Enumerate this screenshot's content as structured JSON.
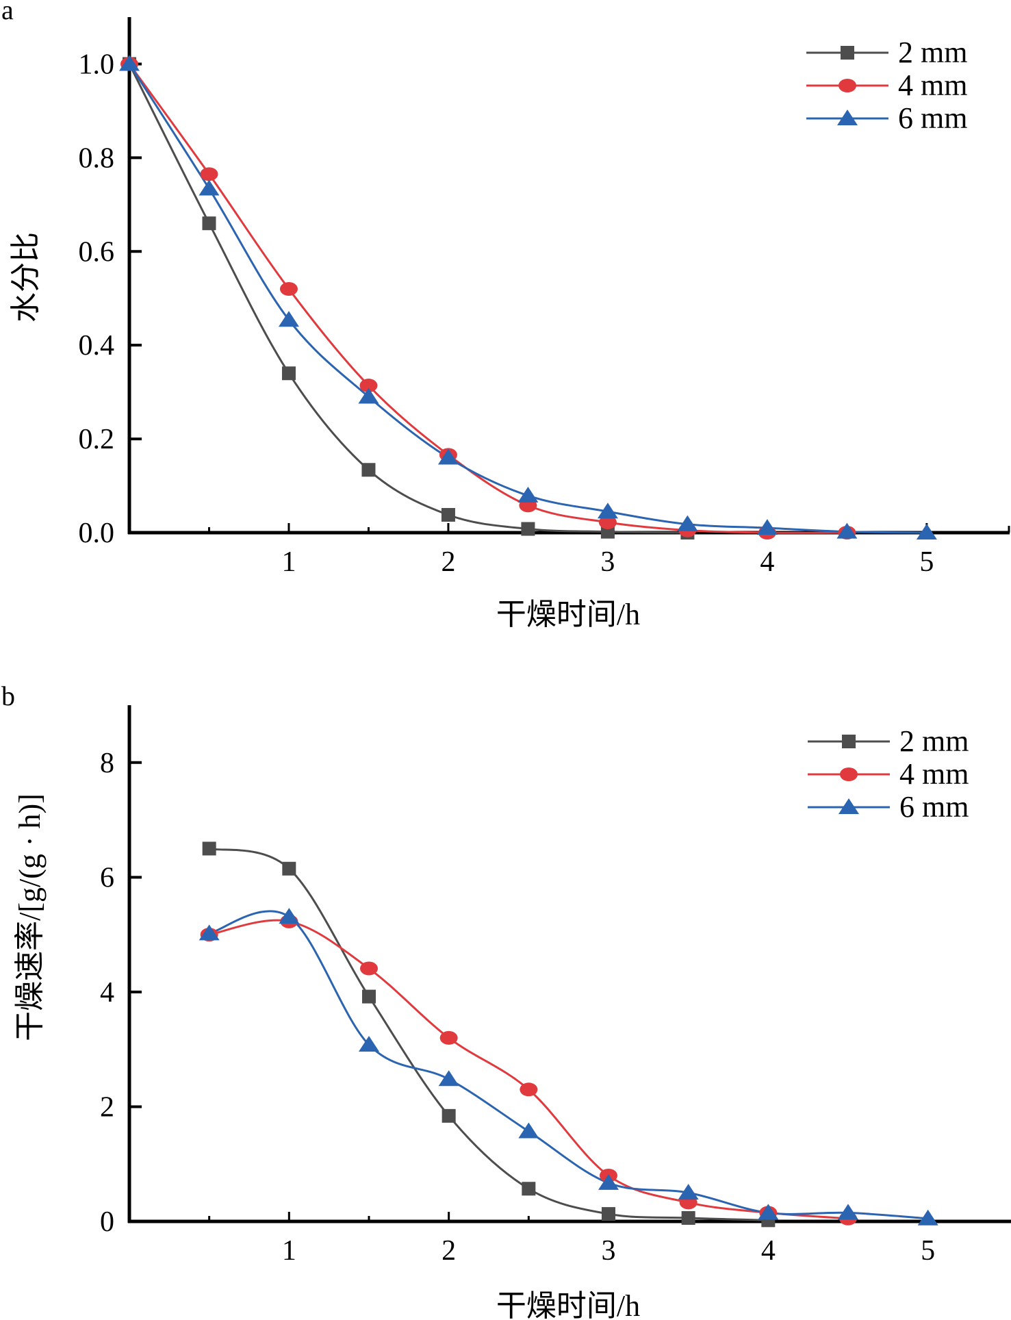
{
  "chart_data": [
    {
      "panel_label": "a",
      "type": "line",
      "title": "",
      "xlabel": "干燥时间/h",
      "ylabel": "水分比",
      "xlim": [
        0,
        5.52
      ],
      "ylim": [
        0,
        1.1
      ],
      "xticks": [
        1,
        2,
        3,
        4,
        5
      ],
      "xtick_labels": [
        "1",
        "2",
        "3",
        "4",
        "5"
      ],
      "xminor": [
        0.5,
        1.5,
        2.5,
        3.5,
        4.5
      ],
      "yticks": [
        0,
        0.2,
        0.4,
        0.6,
        0.8,
        1.0
      ],
      "ytick_labels": [
        "0.0",
        "0.2",
        "0.4",
        "0.6",
        "0.8",
        "1.0"
      ],
      "grid": false,
      "legend_position": "top-right",
      "x": [
        0,
        0.5,
        1,
        1.5,
        2,
        2.5,
        3,
        3.5,
        4,
        4.5,
        5
      ],
      "series": [
        {
          "name": "2 mm",
          "color": "#4d4d4d",
          "marker": "square",
          "x": [
            0,
            0.5,
            1,
            1.5,
            2,
            2.5,
            3,
            3.5
          ],
          "values": [
            1.0,
            0.66,
            0.34,
            0.134,
            0.038,
            0.008,
            0.002,
            0.0
          ]
        },
        {
          "name": "4 mm",
          "color": "#e03a3e",
          "marker": "circle",
          "x": [
            0,
            0.5,
            1,
            1.5,
            2,
            2.5,
            3,
            3.5,
            4,
            4.5
          ],
          "values": [
            1.0,
            0.765,
            0.52,
            0.314,
            0.166,
            0.058,
            0.022,
            0.005,
            0.0,
            0.0
          ]
        },
        {
          "name": "6 mm",
          "color": "#2b64b0",
          "marker": "triangle",
          "x": [
            0,
            0.5,
            1,
            1.5,
            2,
            2.5,
            3,
            3.5,
            4,
            4.5,
            5
          ],
          "values": [
            1.0,
            0.734,
            0.454,
            0.29,
            0.16,
            0.079,
            0.045,
            0.018,
            0.01,
            0.002,
            0.0
          ]
        }
      ]
    },
    {
      "panel_label": "b",
      "type": "line",
      "title": "",
      "xlabel": "干燥时间/h",
      "ylabel": "干燥速率/[g/(g · h)]",
      "xlim": [
        0,
        5.52
      ],
      "ylim": [
        0,
        9
      ],
      "xticks": [
        1,
        2,
        3,
        4,
        5
      ],
      "xtick_labels": [
        "1",
        "2",
        "3",
        "4",
        "5"
      ],
      "xminor": [
        0.5,
        1.5,
        2.5,
        3.5,
        4.5
      ],
      "yticks": [
        0,
        2,
        4,
        6,
        8
      ],
      "ytick_labels": [
        "0",
        "2",
        "4",
        "6",
        "8"
      ],
      "grid": false,
      "legend_position": "top-right",
      "series": [
        {
          "name": "2 mm",
          "color": "#4d4d4d",
          "marker": "square",
          "x": [
            0.5,
            1,
            1.5,
            2,
            2.5,
            3,
            3.5,
            4
          ],
          "values": [
            6.5,
            6.15,
            3.92,
            1.84,
            0.57,
            0.13,
            0.06,
            0.02
          ]
        },
        {
          "name": "4 mm",
          "color": "#e03a3e",
          "marker": "circle",
          "x": [
            0.5,
            1,
            1.5,
            2,
            2.5,
            3,
            3.5,
            4,
            4.5
          ],
          "values": [
            5.0,
            5.23,
            4.41,
            3.2,
            2.3,
            0.8,
            0.33,
            0.15,
            0.05
          ]
        },
        {
          "name": "6 mm",
          "color": "#2b64b0",
          "marker": "triangle",
          "x": [
            0.5,
            1,
            1.5,
            2,
            2.5,
            3,
            3.5,
            4,
            4.5,
            5
          ],
          "values": [
            5.02,
            5.31,
            3.08,
            2.48,
            1.57,
            0.67,
            0.5,
            0.15,
            0.15,
            0.05
          ]
        }
      ]
    }
  ]
}
